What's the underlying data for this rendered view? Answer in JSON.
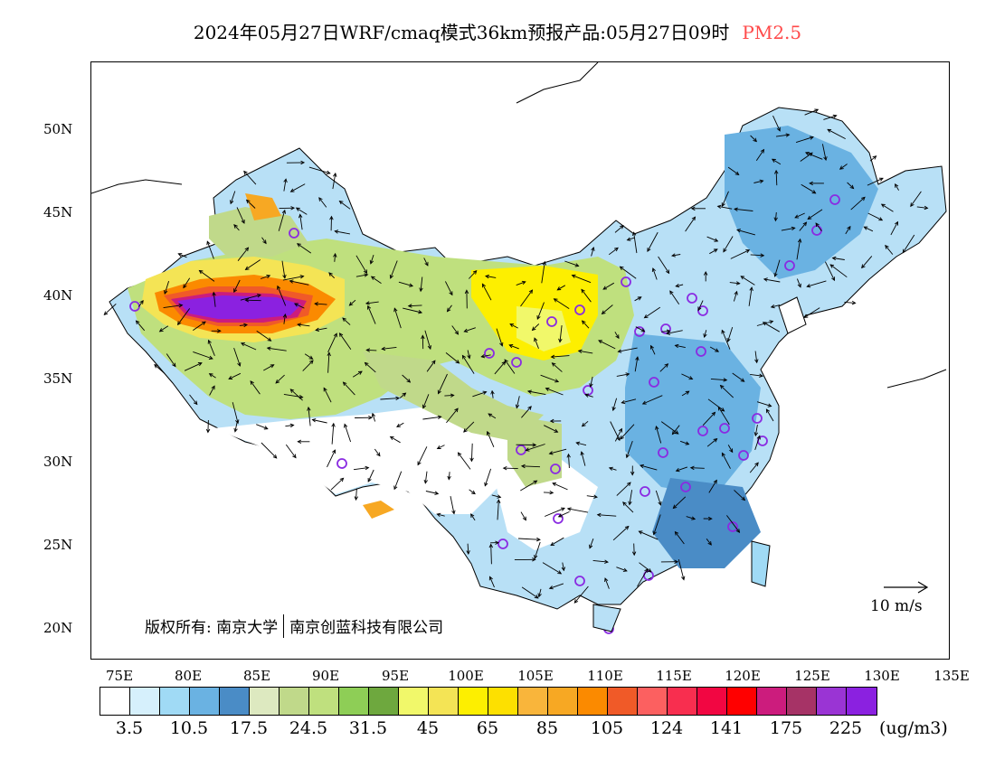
{
  "header": {
    "title": "2024年05月27日WRF/cmaq模式36km预报产品:05月27日09时",
    "variable": "PM2.5"
  },
  "axes": {
    "lat_labels": [
      "50N",
      "45N",
      "40N",
      "35N",
      "30N",
      "25N",
      "20N"
    ],
    "lon_labels": [
      "75E",
      "80E",
      "85E",
      "90E",
      "95E",
      "100E",
      "105E",
      "110E",
      "115E",
      "120E",
      "125E",
      "130E",
      "135E"
    ]
  },
  "copyright": {
    "left": "版权所有: 南京大学",
    "right": "南京创蓝科技有限公司"
  },
  "wind_reference": {
    "label": "10 m/s"
  },
  "colorbar": {
    "colors": [
      "#ffffff",
      "#d6f0fc",
      "#a0daf5",
      "#6ab2e2",
      "#4a8cc6",
      "#dde9c0",
      "#c0d98a",
      "#bfe07e",
      "#8ece56",
      "#6ea83e",
      "#f1f86a",
      "#f4e455",
      "#fdef00",
      "#fde000",
      "#f9b53b",
      "#f7a823",
      "#fb8a00",
      "#f05a28",
      "#fc6060",
      "#f82e4f",
      "#f20642",
      "#ff0000",
      "#cc1c7d",
      "#a63366",
      "#9a34d4",
      "#8b21e0"
    ],
    "labels": [
      "3.5",
      "10.5",
      "17.5",
      "24.5",
      "31.5",
      "45",
      "65",
      "85",
      "105",
      "124",
      "141",
      "175",
      "225"
    ],
    "unit": "(ug/m3)"
  },
  "map": {
    "regions": [
      {
        "name": "haze-extreme-taklimakan",
        "color": "#8b21e0",
        "level": "225"
      },
      {
        "name": "haze-high-tarim",
        "color": "#f4e455",
        "level": "45-65"
      },
      {
        "name": "haze-moderate-northwest",
        "color": "#bfe07e",
        "level": "24.5-31.5"
      },
      {
        "name": "haze-loess",
        "color": "#fdef00",
        "level": "65"
      },
      {
        "name": "clean-east",
        "color": "#a0daf5",
        "level": "10.5"
      }
    ],
    "city_markers": 40
  }
}
